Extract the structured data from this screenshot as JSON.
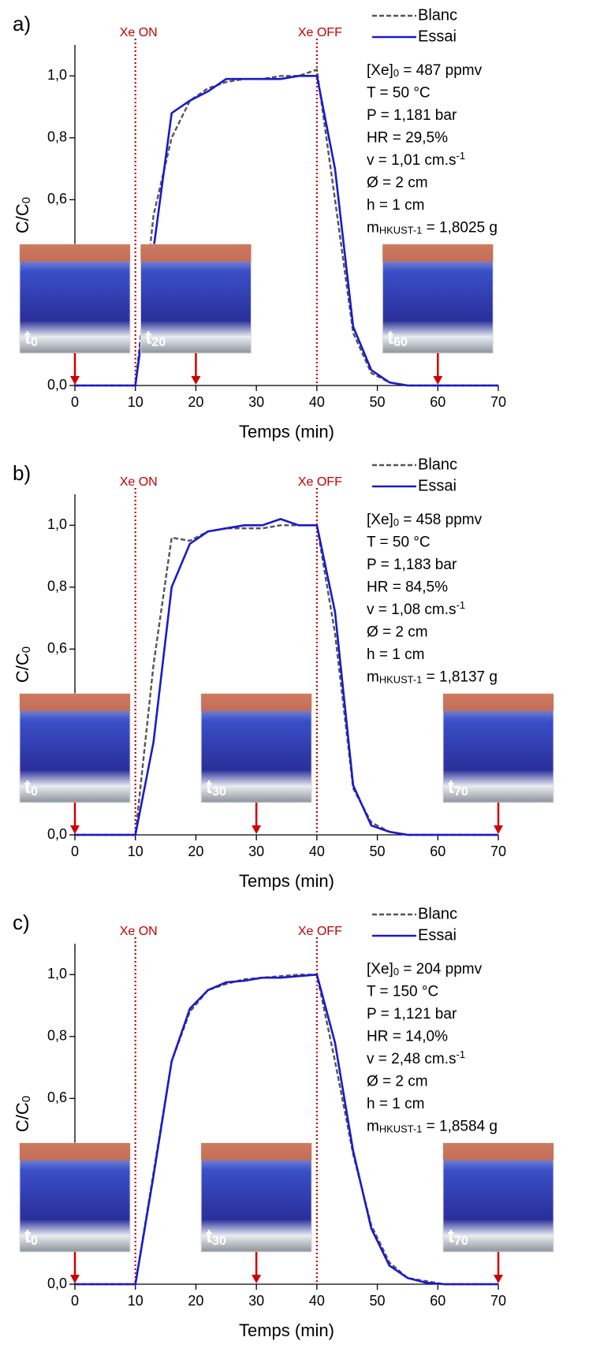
{
  "chart_data": [
    {
      "type": "line",
      "panel_label": "a)",
      "x_label": "Temps (min)",
      "y_label": [
        {
          "text": "C/C"
        },
        {
          "sub": "0"
        }
      ],
      "x": [
        0,
        10,
        13,
        16,
        19,
        22,
        25,
        28,
        31,
        34,
        37,
        40,
        43,
        46,
        49,
        52,
        55,
        58,
        61,
        64,
        67,
        70
      ],
      "series": [
        {
          "name": "Blanc",
          "color": "#555555",
          "dash": true,
          "values": [
            0,
            0,
            0.55,
            0.8,
            0.92,
            0.96,
            0.98,
            0.99,
            0.99,
            1.0,
            1.0,
            1.02,
            0.6,
            0.17,
            0.04,
            0.01,
            0,
            0,
            0,
            0,
            0,
            0
          ]
        },
        {
          "name": "Essai",
          "color": "#1a1acc",
          "dash": false,
          "values": [
            0,
            0,
            0.44,
            0.88,
            0.92,
            0.95,
            0.99,
            0.99,
            0.99,
            0.99,
            1.0,
            1.0,
            0.7,
            0.19,
            0.05,
            0.01,
            0,
            0,
            0,
            0,
            0,
            0
          ]
        }
      ],
      "xlim": [
        0,
        70
      ],
      "xticks": [
        0,
        10,
        20,
        30,
        40,
        50,
        60,
        70
      ],
      "ylim": [
        0,
        1.1
      ],
      "yticks": [
        {
          "value": 0,
          "label": "0,0"
        },
        {
          "value": 0.6,
          "label": "0,6"
        },
        {
          "value": 0.8,
          "label": "0,8"
        },
        {
          "value": 1.0,
          "label": "1,0"
        }
      ],
      "events": [
        {
          "x": 10,
          "label": "Xe ON"
        },
        {
          "x": 40,
          "label": "Xe OFF"
        }
      ],
      "photos": [
        {
          "x": 0,
          "label": "t",
          "sub": "0"
        },
        {
          "x": 20,
          "label": "t",
          "sub": "20"
        },
        {
          "x": 60,
          "label": "t",
          "sub": "60"
        }
      ],
      "parameters": [
        [
          {
            "text": "[Xe]"
          },
          {
            "sub": "0"
          },
          {
            "text": " = 487 ppmv"
          }
        ],
        [
          {
            "text": "T = 50 °C"
          }
        ],
        [
          {
            "text": "P = 1,181 bar"
          }
        ],
        [
          {
            "text": "HR = 29,5%"
          }
        ],
        [
          {
            "text": "v = 1,01 cm.s"
          },
          {
            "sup": "-1"
          }
        ],
        [
          {
            "text": "Ø = 2 cm"
          }
        ],
        [
          {
            "text": "h = 1 cm"
          }
        ],
        [
          {
            "text": "m"
          },
          {
            "sub": "HKUST-1"
          },
          {
            "text": " = 1,8025 g"
          }
        ]
      ]
    },
    {
      "type": "line",
      "panel_label": "b)",
      "x_label": "Temps (min)",
      "y_label": [
        {
          "text": "C/C"
        },
        {
          "sub": "0"
        }
      ],
      "x": [
        0,
        10,
        13,
        16,
        19,
        22,
        25,
        28,
        31,
        34,
        37,
        40,
        43,
        46,
        49,
        52,
        55,
        58,
        61,
        64,
        67,
        70
      ],
      "series": [
        {
          "name": "Blanc",
          "color": "#555555",
          "dash": true,
          "values": [
            0,
            0,
            0.55,
            0.96,
            0.95,
            0.98,
            0.99,
            0.99,
            0.99,
            1.0,
            1.0,
            1.0,
            0.65,
            0.15,
            0.04,
            0.01,
            0,
            0,
            0,
            0,
            0,
            0
          ]
        },
        {
          "name": "Essai",
          "color": "#1a1acc",
          "dash": false,
          "values": [
            0,
            0,
            0.3,
            0.8,
            0.94,
            0.98,
            0.99,
            1.0,
            1.0,
            1.02,
            1.0,
            1.0,
            0.72,
            0.16,
            0.03,
            0.01,
            0,
            0,
            0,
            0,
            0,
            0
          ]
        }
      ],
      "xlim": [
        0,
        70
      ],
      "xticks": [
        0,
        10,
        20,
        30,
        40,
        50,
        60,
        70
      ],
      "ylim": [
        0,
        1.1
      ],
      "yticks": [
        {
          "value": 0,
          "label": "0,0"
        },
        {
          "value": 0.6,
          "label": "0,6"
        },
        {
          "value": 0.8,
          "label": "0,8"
        },
        {
          "value": 1.0,
          "label": "1,0"
        }
      ],
      "events": [
        {
          "x": 10,
          "label": "Xe ON"
        },
        {
          "x": 40,
          "label": "Xe OFF"
        }
      ],
      "photos": [
        {
          "x": 0,
          "label": "t",
          "sub": "0"
        },
        {
          "x": 30,
          "label": "t",
          "sub": "30"
        },
        {
          "x": 70,
          "label": "t",
          "sub": "70"
        }
      ],
      "parameters": [
        [
          {
            "text": "[Xe]"
          },
          {
            "sub": "0"
          },
          {
            "text": " = 458 ppmv"
          }
        ],
        [
          {
            "text": "T = 50 °C"
          }
        ],
        [
          {
            "text": "P = 1,183 bar"
          }
        ],
        [
          {
            "text": "HR = 84,5%"
          }
        ],
        [
          {
            "text": "v = 1,08 cm.s"
          },
          {
            "sup": "-1"
          }
        ],
        [
          {
            "text": "Ø = 2 cm"
          }
        ],
        [
          {
            "text": "h = 1 cm"
          }
        ],
        [
          {
            "text": "m"
          },
          {
            "sub": "HKUST-1"
          },
          {
            "text": " = 1,8137 g"
          }
        ]
      ]
    },
    {
      "type": "line",
      "panel_label": "c)",
      "x_label": "Temps (min)",
      "y_label": [
        {
          "text": "C/C"
        },
        {
          "sub": "0"
        }
      ],
      "x": [
        0,
        10,
        13,
        16,
        19,
        22,
        25,
        28,
        31,
        34,
        37,
        40,
        43,
        46,
        49,
        52,
        55,
        58,
        61,
        64,
        67,
        70
      ],
      "series": [
        {
          "name": "Blanc",
          "color": "#555555",
          "dash": true,
          "values": [
            0,
            0,
            0.36,
            0.72,
            0.88,
            0.95,
            0.97,
            0.985,
            0.99,
            0.995,
            1.0,
            1.0,
            0.72,
            0.42,
            0.19,
            0.07,
            0.02,
            0.01,
            0,
            0,
            0,
            0
          ]
        },
        {
          "name": "Essai",
          "color": "#1a1acc",
          "dash": false,
          "values": [
            0,
            0,
            0.35,
            0.72,
            0.89,
            0.95,
            0.975,
            0.98,
            0.99,
            0.99,
            0.995,
            1.0,
            0.78,
            0.43,
            0.18,
            0.06,
            0.02,
            0.005,
            0,
            0,
            0,
            0
          ]
        }
      ],
      "xlim": [
        0,
        70
      ],
      "xticks": [
        0,
        10,
        20,
        30,
        40,
        50,
        60,
        70
      ],
      "ylim": [
        0,
        1.1
      ],
      "yticks": [
        {
          "value": 0,
          "label": "0,0"
        },
        {
          "value": 0.6,
          "label": "0,6"
        },
        {
          "value": 0.8,
          "label": "0,8"
        },
        {
          "value": 1.0,
          "label": "1,0"
        }
      ],
      "events": [
        {
          "x": 10,
          "label": "Xe ON"
        },
        {
          "x": 40,
          "label": "Xe OFF"
        }
      ],
      "photos": [
        {
          "x": 0,
          "label": "t",
          "sub": "0"
        },
        {
          "x": 30,
          "label": "t",
          "sub": "30"
        },
        {
          "x": 70,
          "label": "t",
          "sub": "70"
        }
      ],
      "parameters": [
        [
          {
            "text": "[Xe]"
          },
          {
            "sub": "0"
          },
          {
            "text": " = 204 ppmv"
          }
        ],
        [
          {
            "text": "T = 150 °C"
          }
        ],
        [
          {
            "text": "P = 1,121 bar"
          }
        ],
        [
          {
            "text": "HR = 14,0%"
          }
        ],
        [
          {
            "text": "v = 2,48 cm.s"
          },
          {
            "sup": "-1"
          }
        ],
        [
          {
            "text": "Ø = 2 cm"
          }
        ],
        [
          {
            "text": "h = 1 cm"
          }
        ],
        [
          {
            "text": "m"
          },
          {
            "sub": "HKUST-1"
          },
          {
            "text": " = 1,8584 g"
          }
        ]
      ]
    }
  ]
}
